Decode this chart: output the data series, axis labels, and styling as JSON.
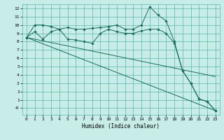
{
  "xlabel": "Humidex (Indice chaleur)",
  "bg_color": "#c8ede8",
  "grid_color": "#5ab5a8",
  "line_color": "#1a6b5a",
  "xlim": [
    -0.5,
    23.5
  ],
  "ylim": [
    -0.8,
    12.5
  ],
  "xticks": [
    0,
    1,
    2,
    3,
    4,
    5,
    6,
    7,
    8,
    9,
    10,
    11,
    12,
    13,
    14,
    15,
    16,
    17,
    18,
    19,
    20,
    21,
    22,
    23
  ],
  "yticks": [
    0,
    1,
    2,
    3,
    4,
    5,
    6,
    7,
    8,
    9,
    10,
    11,
    12
  ],
  "ytick_labels": [
    "-0",
    "1",
    "2",
    "3",
    "4",
    "5",
    "6",
    "7",
    "8",
    "9",
    "10",
    "11",
    "12"
  ],
  "line1_x": [
    0,
    1,
    2,
    3,
    4,
    5,
    6,
    7,
    8,
    9,
    10,
    11,
    12,
    13,
    14,
    15,
    16,
    17,
    18,
    19,
    20,
    21,
    22,
    23
  ],
  "line1_y": [
    8.5,
    10.0,
    10.0,
    9.8,
    9.5,
    9.7,
    9.5,
    9.5,
    9.6,
    9.7,
    9.8,
    10.0,
    9.5,
    9.5,
    10.0,
    12.2,
    11.2,
    10.5,
    8.0,
    4.5,
    3.0,
    1.1,
    0.8,
    -0.3
  ],
  "line2_x": [
    0,
    1,
    2,
    3,
    4,
    5,
    6,
    7,
    8,
    9,
    10,
    11,
    12,
    13,
    14,
    15,
    16,
    17,
    18,
    19,
    20,
    21,
    22,
    23
  ],
  "line2_y": [
    8.5,
    9.2,
    8.3,
    9.2,
    9.5,
    8.3,
    8.2,
    8.0,
    7.8,
    9.0,
    9.5,
    9.2,
    9.0,
    9.0,
    9.3,
    9.5,
    9.5,
    9.0,
    7.8,
    4.5,
    3.0,
    1.1,
    0.8,
    -0.3
  ],
  "line3_x": [
    0,
    23
  ],
  "line3_y": [
    8.5,
    -0.3
  ],
  "line4_x": [
    0,
    23
  ],
  "line4_y": [
    8.5,
    3.8
  ],
  "marker": "D",
  "markersize": 1.8,
  "linewidth": 0.7
}
